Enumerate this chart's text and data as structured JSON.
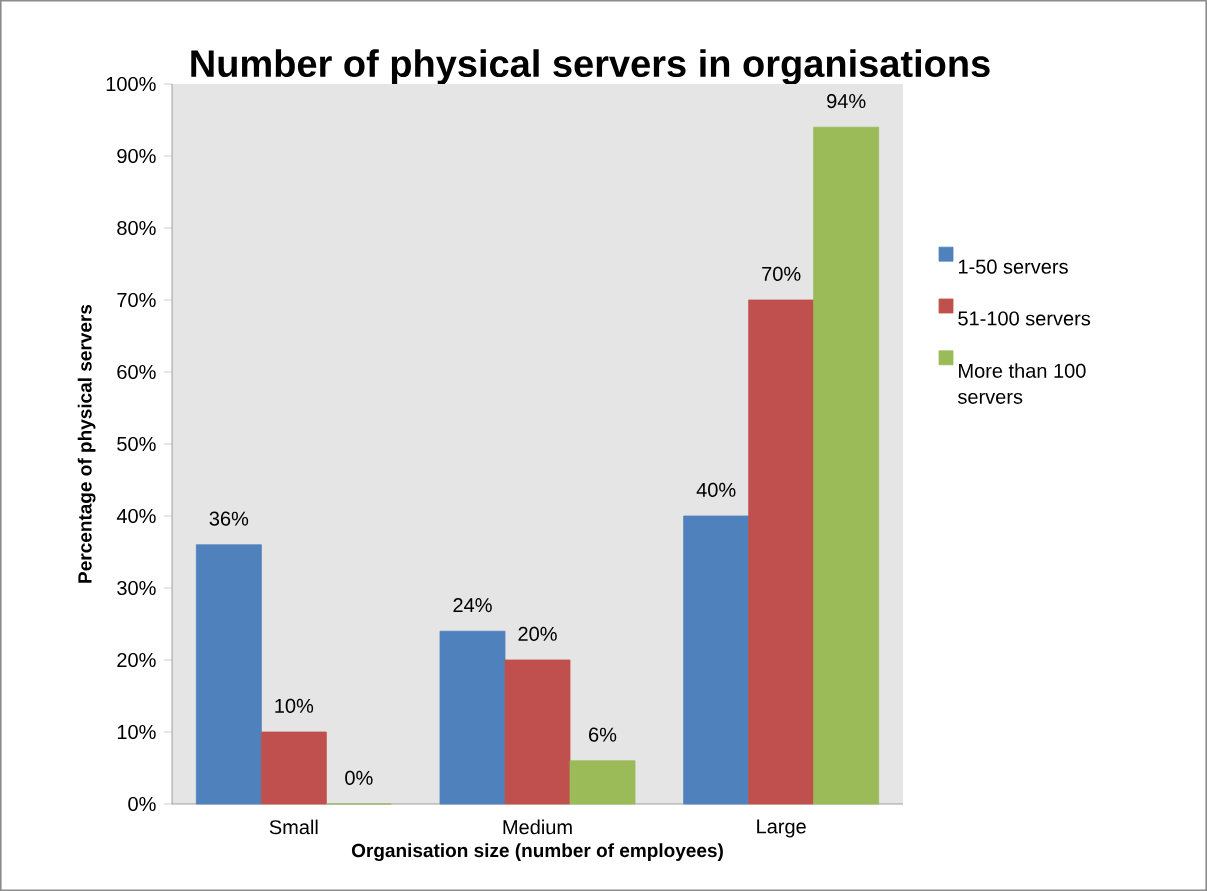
{
  "chart_data": {
    "type": "bar",
    "title": "Number of physical servers in organisations",
    "xlabel": "Organisation size (number of employees)",
    "ylabel": "Percentage of physical servers",
    "categories": [
      "Small",
      "Medium",
      "Large"
    ],
    "series": [
      {
        "name": "1-50 servers",
        "color": "#4f81bd",
        "values": [
          36,
          24,
          40
        ],
        "value_labels": [
          "36%",
          "24%",
          "40%"
        ]
      },
      {
        "name": "51-100 servers",
        "color": "#c0504d",
        "values": [
          10,
          20,
          70
        ],
        "value_labels": [
          "10%",
          "20%",
          "70%"
        ]
      },
      {
        "name": "More than 100 servers",
        "color": "#9bbb59",
        "values": [
          0,
          6,
          94
        ],
        "value_labels": [
          "0%",
          "6%",
          "94%"
        ]
      }
    ],
    "ylim": [
      0,
      100
    ],
    "yticks": [
      {
        "value": 0,
        "label": "0%"
      },
      {
        "value": 10,
        "label": "10%"
      },
      {
        "value": 20,
        "label": "20%"
      },
      {
        "value": 30,
        "label": "30%"
      },
      {
        "value": 40,
        "label": "40%"
      },
      {
        "value": 50,
        "label": "50%"
      },
      {
        "value": 60,
        "label": "60%"
      },
      {
        "value": 70,
        "label": "70%"
      },
      {
        "value": 80,
        "label": "80%"
      },
      {
        "value": 90,
        "label": "90%"
      },
      {
        "value": 100,
        "label": "100%"
      }
    ],
    "grid": false,
    "legend": "right"
  }
}
